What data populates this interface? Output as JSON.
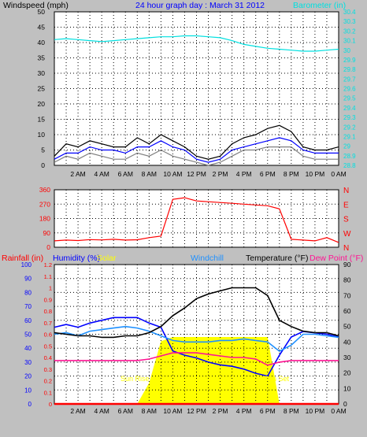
{
  "header": {
    "left_label": "Windspeed (mph)",
    "title": "24 hour graph day : March 31 2012",
    "right_label": "Barometer (in)"
  },
  "colors": {
    "background": "#c0c0c0",
    "plot_bg": "#ffffff",
    "grid": "#000000",
    "wind_gust": "#000000",
    "wind_avg": "#808080",
    "wind_trend": "#0000ff",
    "barometer": "#00e0e0",
    "direction": "#ff0000",
    "rain": "#ff0000",
    "humidity": "#0000ff",
    "solar": "#ffff00",
    "windchill": "#1e90ff",
    "temperature": "#000000",
    "dewpoint": "#ff1493",
    "sun_text": "#ffff00"
  },
  "chart_data": [
    {
      "type": "line",
      "id": "wind",
      "x_tick_labels": [
        "2 AM",
        "4 AM",
        "6 AM",
        "8 AM",
        "10 AM",
        "12 PM",
        "2 PM",
        "4 PM",
        "6 PM",
        "8 PM",
        "10 PM",
        "0 AM"
      ],
      "y_left": {
        "label": "Windspeed (mph)",
        "range": [
          0,
          50
        ],
        "ticks": [
          0,
          5,
          10,
          15,
          20,
          25,
          30,
          35,
          40,
          45,
          50
        ]
      },
      "y_right": {
        "label": "Barometer (in)",
        "range": [
          28.8,
          30.4
        ],
        "ticks": [
          "28.8",
          "28.9",
          "29",
          "29.1",
          "29.2",
          "29.3",
          "29.4",
          "29.5",
          "29.6",
          "29.7",
          "29.8",
          "29.9",
          "30",
          "30.1",
          "30.2",
          "30.3",
          "30.4"
        ]
      },
      "x": [
        0,
        1,
        2,
        3,
        4,
        5,
        6,
        7,
        8,
        9,
        10,
        11,
        12,
        13,
        14,
        15,
        16,
        17,
        18,
        19,
        20,
        21,
        22,
        23,
        24
      ],
      "series": [
        {
          "name": "Gust",
          "color": "#000000",
          "values": [
            3,
            7,
            6,
            8,
            7,
            6,
            6,
            9,
            7,
            10,
            8,
            6,
            3,
            2,
            3,
            7,
            9,
            10,
            12,
            13,
            11,
            6,
            5,
            5,
            6
          ]
        },
        {
          "name": "Average",
          "color": "#808080",
          "values": [
            1,
            3,
            2,
            4,
            3,
            2,
            2,
            4,
            3,
            5,
            3,
            2,
            1,
            0,
            1,
            3,
            5,
            5,
            6,
            6,
            6,
            3,
            2,
            2,
            2
          ]
        },
        {
          "name": "Trend",
          "color": "#0000ff",
          "values": [
            2,
            4,
            4,
            6,
            5,
            5,
            4,
            6,
            6,
            8,
            6,
            5,
            2,
            1,
            2,
            5,
            6,
            7,
            8,
            9,
            8,
            5,
            4,
            4,
            4
          ]
        },
        {
          "name": "Barometer",
          "color": "#00e0e0",
          "axis": "right",
          "values": [
            30.11,
            30.12,
            30.11,
            30.1,
            30.09,
            30.1,
            30.11,
            30.12,
            30.13,
            30.14,
            30.14,
            30.15,
            30.15,
            30.14,
            30.13,
            30.1,
            30.06,
            30.04,
            30.02,
            30.01,
            30.0,
            29.99,
            29.99,
            30.0,
            30.01
          ]
        }
      ]
    },
    {
      "type": "line",
      "id": "direction",
      "y_left": {
        "range": [
          0,
          360
        ],
        "ticks": [
          0,
          90,
          180,
          270,
          360
        ]
      },
      "y_right_labels": [
        "N",
        "E",
        "S",
        "W",
        "N"
      ],
      "x": [
        0,
        1,
        2,
        3,
        4,
        5,
        6,
        7,
        8,
        9,
        10,
        11,
        12,
        13,
        14,
        15,
        16,
        17,
        18,
        19,
        20,
        21,
        22,
        23,
        24
      ],
      "series": [
        {
          "name": "Direction",
          "color": "#ff0000",
          "values": [
            40,
            45,
            42,
            48,
            46,
            50,
            45,
            47,
            60,
            70,
            300,
            310,
            290,
            285,
            280,
            275,
            270,
            265,
            260,
            240,
            50,
            45,
            40,
            60,
            30
          ]
        }
      ]
    },
    {
      "type": "line",
      "id": "temperature",
      "y_left": {
        "label": "Rainfall (in)",
        "range": [
          0,
          1.2
        ],
        "ticks": [
          "0",
          "0.1",
          "0.2",
          "0.3",
          "0.4",
          "0.5",
          "0.6",
          "0.7",
          "0.8",
          "0.9",
          "1",
          "1.1",
          "1.2"
        ]
      },
      "y_left2": {
        "label": "Humidity (%)",
        "range": [
          0,
          100
        ],
        "ticks": [
          0,
          10,
          20,
          30,
          40,
          50,
          60,
          70,
          80,
          90,
          100
        ]
      },
      "y_right": {
        "label": "Temperature (°F)",
        "range": [
          0,
          90
        ],
        "ticks": [
          0,
          10,
          20,
          30,
          40,
          50,
          60,
          70,
          80,
          90
        ]
      },
      "legend": [
        "Rainfall (in)",
        "Humidity (%)",
        "Solar",
        "Windchill",
        "Temperature (°F)",
        "Dew Point (°F)"
      ],
      "annotations": [
        "Sun Rise",
        "Sun Set"
      ],
      "x": [
        0,
        1,
        2,
        3,
        4,
        5,
        6,
        7,
        8,
        9,
        10,
        11,
        12,
        13,
        14,
        15,
        16,
        17,
        18,
        19,
        20,
        21,
        22,
        23,
        24
      ],
      "series": [
        {
          "name": "Rainfall (in)",
          "color": "#ff0000",
          "values": [
            0,
            0,
            0,
            0,
            0,
            0,
            0,
            0,
            0,
            0,
            0,
            0,
            0,
            0,
            0,
            0,
            0,
            0,
            0,
            0,
            0,
            0,
            0,
            0,
            0
          ]
        },
        {
          "name": "Humidity (%)",
          "color": "#0000ff",
          "values": [
            55,
            57,
            55,
            58,
            60,
            62,
            62,
            62,
            58,
            55,
            38,
            35,
            33,
            30,
            28,
            27,
            25,
            22,
            20,
            35,
            48,
            52,
            51,
            50,
            48
          ]
        },
        {
          "name": "Solar",
          "color": "#ffff00",
          "values": [
            0,
            0,
            0,
            0,
            0,
            0,
            0,
            0,
            15,
            45,
            48,
            48,
            48,
            48,
            48,
            48,
            48,
            48,
            48,
            0,
            0,
            0,
            0,
            0,
            0
          ]
        },
        {
          "name": "Windchill",
          "color": "#1e90ff",
          "values": [
            45,
            46,
            44,
            47,
            48,
            49,
            50,
            49,
            47,
            44,
            41,
            40,
            40,
            40,
            41,
            41,
            42,
            41,
            40,
            34,
            38,
            45,
            45,
            44,
            43
          ]
        },
        {
          "name": "Temperature (°F)",
          "color": "#000000",
          "values": [
            46,
            45,
            44,
            44,
            43,
            43,
            44,
            44,
            46,
            50,
            57,
            62,
            68,
            71,
            73,
            75,
            75,
            75,
            70,
            54,
            50,
            47,
            46,
            46,
            44
          ]
        },
        {
          "name": "Dew Point (°F)",
          "color": "#ff1493",
          "values": [
            28,
            28,
            28,
            28,
            28,
            28,
            28,
            28,
            29,
            31,
            33,
            33,
            33,
            32,
            31,
            30,
            30,
            29,
            25,
            27,
            28,
            28,
            28,
            28,
            28
          ]
        }
      ]
    }
  ]
}
